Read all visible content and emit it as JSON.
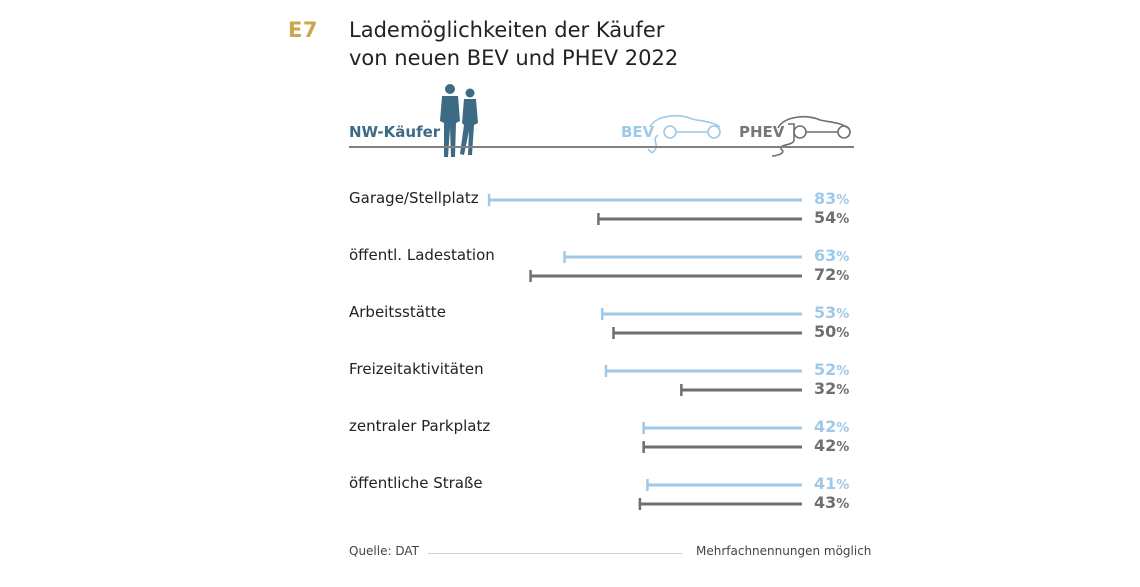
{
  "header": {
    "tag": "E7",
    "title_line1": "Lademöglichkeiten der Käufer",
    "title_line2": "von neuen BEV und PHEV 2022"
  },
  "legend": {
    "buyers_label": "NW-Käufer",
    "bev_label": "BEV",
    "phev_label": "PHEV"
  },
  "colors": {
    "bev": "#9ec9e8",
    "phev": "#6f6f6f",
    "accent": "#c9a74a",
    "buyers": "#3d6a85"
  },
  "icons": [
    "buyers-silhouette-icon",
    "bev-car-icon",
    "phev-car-icon"
  ],
  "chart_data": {
    "type": "bar",
    "orientation": "horizontal",
    "categories": [
      "Garage/Stellplatz",
      "öffentl. Ladestation",
      "Arbeitsstätte",
      "Freizeitaktivitäten",
      "zentraler Parkplatz",
      "öffentliche Straße"
    ],
    "series": [
      {
        "name": "BEV",
        "values": [
          83,
          63,
          53,
          52,
          42,
          41
        ]
      },
      {
        "name": "PHEV",
        "values": [
          54,
          72,
          50,
          32,
          42,
          43
        ]
      }
    ],
    "unit": "%",
    "xlim": [
      0,
      100
    ],
    "grid": false,
    "legend_position": "top-right"
  },
  "footer": {
    "source": "Quelle: DAT",
    "note": "Mehrfachnennungen möglich"
  }
}
